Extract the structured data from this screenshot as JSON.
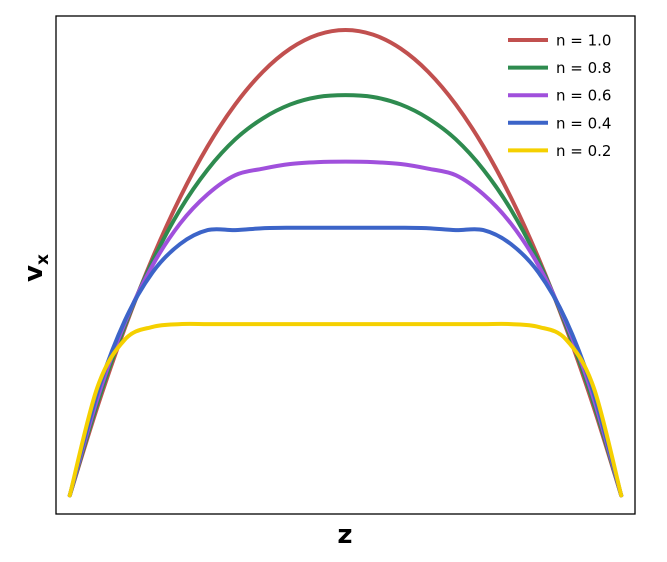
{
  "chart_data": {
    "type": "line",
    "title": "",
    "xlabel": "z",
    "ylabel": "v",
    "ylabel_subscript": "x",
    "xticks": [],
    "yticks": [],
    "grid": false,
    "legend_position": "top-right",
    "xlim": [
      -1.05,
      1.05
    ],
    "ylim": [
      -0.04,
      1.03
    ],
    "x": [
      -1.0,
      -0.9,
      -0.8,
      -0.7,
      -0.6,
      -0.5,
      -0.4,
      -0.3,
      -0.2,
      -0.1,
      0.0,
      0.1,
      0.2,
      0.3,
      0.4,
      0.5,
      0.6,
      0.7,
      0.8,
      0.9,
      1.0
    ],
    "series": [
      {
        "name": "n = 1.0",
        "color": "#c1504f",
        "values": [
          0.0,
          0.19,
          0.36,
          0.51,
          0.64,
          0.75,
          0.84,
          0.91,
          0.96,
          0.99,
          1.0,
          0.99,
          0.96,
          0.91,
          0.84,
          0.75,
          0.64,
          0.51,
          0.36,
          0.19,
          0.0
        ]
      },
      {
        "name": "n = 0.8",
        "color": "#2e8b4f",
        "values": [
          0.0,
          0.198,
          0.365,
          0.503,
          0.614,
          0.7,
          0.765,
          0.81,
          0.84,
          0.856,
          0.86,
          0.856,
          0.84,
          0.81,
          0.765,
          0.7,
          0.614,
          0.503,
          0.365,
          0.198,
          0.0
        ]
      },
      {
        "name": "n = 0.6",
        "color": "#a050dc",
        "values": [
          0.0,
          0.208,
          0.371,
          0.494,
          0.584,
          0.647,
          0.688,
          0.702,
          0.712,
          0.716,
          0.717,
          0.716,
          0.712,
          0.702,
          0.688,
          0.647,
          0.584,
          0.494,
          0.371,
          0.208,
          0.0
        ]
      },
      {
        "name": "n = 0.4",
        "color": "#3c64c8",
        "values": [
          0.0,
          0.22,
          0.376,
          0.479,
          0.54,
          0.57,
          0.57,
          0.574,
          0.575,
          0.575,
          0.575,
          0.575,
          0.575,
          0.574,
          0.57,
          0.57,
          0.54,
          0.479,
          0.376,
          0.22,
          0.0
        ]
      },
      {
        "name": "n = 0.2",
        "color": "#f5d000",
        "values": [
          0.0,
          0.232,
          0.335,
          0.362,
          0.368,
          0.368,
          0.368,
          0.368,
          0.368,
          0.368,
          0.368,
          0.368,
          0.368,
          0.368,
          0.368,
          0.368,
          0.368,
          0.362,
          0.335,
          0.232,
          0.0
        ]
      }
    ]
  }
}
